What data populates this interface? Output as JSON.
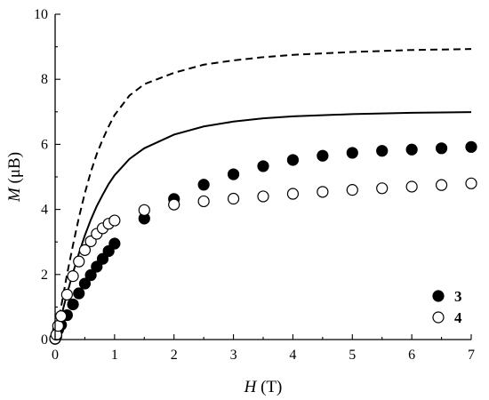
{
  "chart_data": {
    "type": "scatter",
    "xlabel": "H (T)",
    "ylabel": "M (μB)",
    "xlim": [
      0,
      7
    ],
    "ylim": [
      0,
      10
    ],
    "xticks": [
      "0",
      "1",
      "2",
      "3",
      "4",
      "5",
      "6",
      "7"
    ],
    "yticks": [
      "0",
      "2",
      "4",
      "6",
      "8",
      "10"
    ],
    "legend_position": "bottom-right",
    "series": [
      {
        "name": "3",
        "kind": "points",
        "marker": "filled-circle",
        "color": "#000000",
        "x": [
          0.0,
          0.02,
          0.05,
          0.1,
          0.2,
          0.3,
          0.4,
          0.5,
          0.6,
          0.7,
          0.8,
          0.9,
          1.0,
          1.5,
          2.0,
          2.5,
          3.0,
          3.5,
          4.0,
          4.5,
          5.0,
          5.5,
          6.0,
          6.5,
          7.0
        ],
        "y": [
          0.02,
          0.1,
          0.3,
          0.45,
          0.75,
          1.08,
          1.42,
          1.72,
          1.98,
          2.24,
          2.48,
          2.72,
          2.95,
          3.72,
          4.32,
          4.76,
          5.08,
          5.33,
          5.52,
          5.65,
          5.74,
          5.8,
          5.84,
          5.88,
          5.92
        ]
      },
      {
        "name": "4",
        "kind": "points",
        "marker": "open-circle",
        "color": "#000000",
        "x": [
          0.0,
          0.02,
          0.05,
          0.1,
          0.2,
          0.3,
          0.4,
          0.5,
          0.6,
          0.7,
          0.8,
          0.9,
          1.0,
          1.5,
          2.0,
          2.5,
          3.0,
          3.5,
          4.0,
          4.5,
          5.0,
          5.5,
          6.0,
          6.5,
          7.0
        ],
        "y": [
          0.03,
          0.15,
          0.42,
          0.72,
          1.38,
          1.95,
          2.4,
          2.75,
          3.02,
          3.25,
          3.42,
          3.56,
          3.66,
          3.98,
          4.15,
          4.25,
          4.33,
          4.4,
          4.48,
          4.54,
          4.6,
          4.65,
          4.7,
          4.75,
          4.8
        ]
      },
      {
        "name": "",
        "kind": "line",
        "dash": "solid",
        "color": "#000000",
        "x": [
          0.0,
          0.05,
          0.1,
          0.2,
          0.3,
          0.4,
          0.5,
          0.6,
          0.7,
          0.8,
          0.9,
          1.0,
          1.25,
          1.5,
          2.0,
          2.5,
          3.0,
          3.5,
          4.0,
          5.0,
          6.0,
          7.0
        ],
        "y": [
          0.0,
          0.35,
          0.7,
          1.4,
          2.05,
          2.65,
          3.2,
          3.68,
          4.1,
          4.45,
          4.78,
          5.05,
          5.55,
          5.88,
          6.3,
          6.55,
          6.7,
          6.8,
          6.86,
          6.93,
          6.97,
          6.99
        ]
      },
      {
        "name": "",
        "kind": "line",
        "dash": "dashed",
        "color": "#000000",
        "x": [
          0.0,
          0.05,
          0.1,
          0.2,
          0.3,
          0.4,
          0.5,
          0.6,
          0.7,
          0.8,
          0.9,
          1.0,
          1.25,
          1.5,
          2.0,
          2.5,
          3.0,
          3.5,
          4.0,
          5.0,
          6.0,
          7.0
        ],
        "y": [
          0.0,
          0.5,
          1.0,
          2.0,
          2.9,
          3.75,
          4.5,
          5.15,
          5.7,
          6.15,
          6.55,
          6.9,
          7.5,
          7.85,
          8.2,
          8.45,
          8.58,
          8.68,
          8.75,
          8.84,
          8.9,
          8.93
        ]
      }
    ]
  }
}
